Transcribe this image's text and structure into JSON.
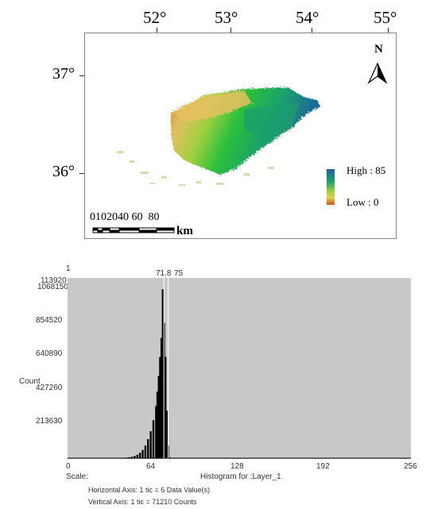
{
  "map": {
    "longitude_labels": [
      "52°",
      "53°",
      "54°",
      "55°"
    ],
    "latitude_labels": [
      "37°",
      "36°"
    ],
    "north_label": "N",
    "legend": {
      "high": "High : 85",
      "low": "Low : 0"
    },
    "scale_label": "0102040 60  80",
    "scale_unit": "km",
    "colors": {
      "high": "#1f5fa0",
      "mid": "#22c02a",
      "low": "#c8541e"
    }
  },
  "histogram": {
    "peak_label": "71.8",
    "peak_label2": "75",
    "y_axis_label": "Count",
    "y_top_labels": [
      "1",
      "113920",
      "1068150"
    ],
    "y_tick_labels": [
      "854520",
      "640890",
      "427260",
      "213630"
    ],
    "x_tick_labels": [
      "0",
      "64",
      "128",
      "192",
      "256"
    ],
    "scale_label": "Scale:",
    "title": "Histogram for :Layer_1",
    "horizontal_axis_note": "Horizontal Axis: 1 tic =  6 Data Value(s)",
    "vertical_axis_note": "Vertical Axis: 1 tic =  71210 Counts",
    "colors": {
      "background": "#c8c8c8",
      "bars": "#000000"
    }
  },
  "chart_data": {
    "type": "bar",
    "title": "Histogram for :Layer_1",
    "xlabel": "",
    "ylabel": "Count",
    "xlim": [
      0,
      256
    ],
    "ylim": [
      0,
      1139200
    ],
    "x": [
      40,
      44,
      46,
      48,
      50,
      52,
      54,
      56,
      58,
      60,
      62,
      64,
      66,
      67,
      68,
      69,
      70,
      71,
      72,
      73,
      74,
      75,
      76
    ],
    "values": [
      2000,
      4000,
      6000,
      9000,
      14000,
      22000,
      34000,
      52000,
      80000,
      120000,
      170000,
      240000,
      330000,
      420000,
      520000,
      640000,
      760000,
      1068150,
      854520,
      640000,
      300000,
      80000,
      5000
    ]
  }
}
